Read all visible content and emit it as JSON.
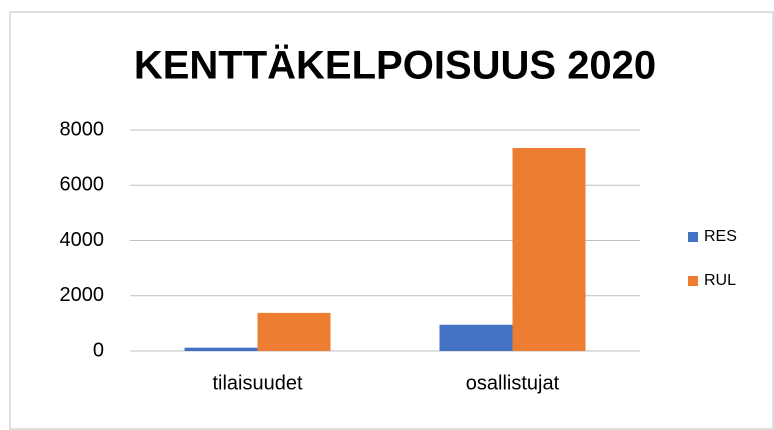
{
  "chart_data": {
    "type": "bar",
    "title": "KENTTÄKELPOISUUS 2020",
    "categories": [
      "tilaisuudet",
      "osallistujat"
    ],
    "series": [
      {
        "name": "RES",
        "color": "#4472c4",
        "values": [
          120,
          950
        ]
      },
      {
        "name": "RUL",
        "color": "#ed7d31",
        "values": [
          1380,
          7350
        ]
      }
    ],
    "ylim": [
      0,
      8000
    ],
    "yticks": [
      0,
      2000,
      4000,
      6000,
      8000
    ],
    "grid": true,
    "legend": "right"
  }
}
